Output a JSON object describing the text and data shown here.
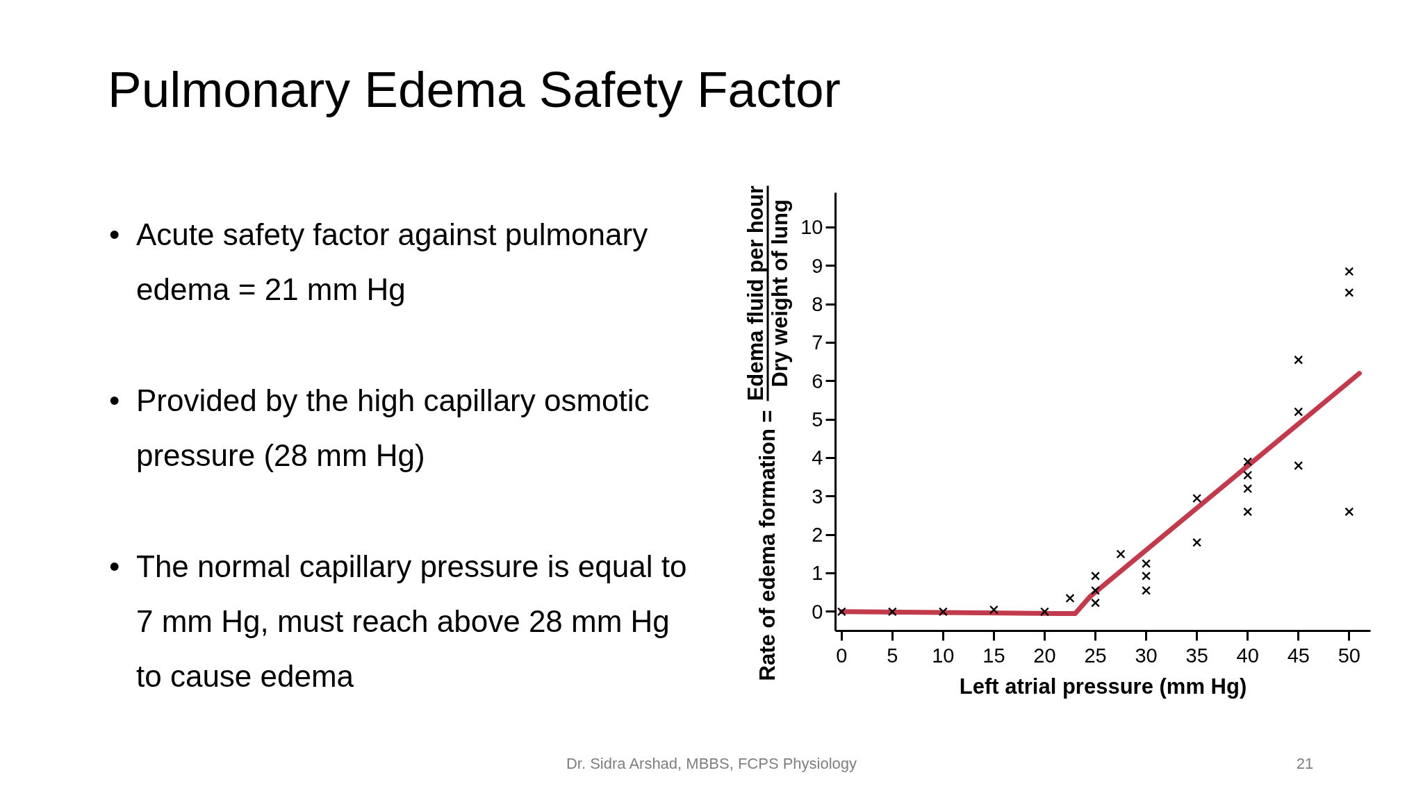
{
  "chart_data": {
    "type": "scatter",
    "title": "Pulmonary Edema Safety Factor",
    "xlabel": "Left atrial pressure (mm Hg)",
    "ylabel": "Rate of edema formation = Edema fluid per hour\nDry weight of lung",
    "xlim": [
      -0.6,
      52.1
    ],
    "ylim": [
      -0.5,
      10.9
    ],
    "xticks": [
      0,
      5,
      10,
      15,
      20,
      25,
      30,
      35,
      40,
      45,
      50
    ],
    "yticks": [
      0,
      1,
      2,
      3,
      4,
      5,
      6,
      7,
      8,
      9,
      10
    ],
    "grid": false,
    "line_style": "solid",
    "series": [
      {
        "marker": "cross",
        "color": "#000000",
        "x": [
          0,
          5,
          10,
          15,
          20,
          22.5,
          25,
          25,
          25,
          27.5,
          30,
          30,
          30,
          35,
          35,
          40,
          40,
          40,
          40,
          45,
          45,
          45,
          50,
          50,
          50
        ],
        "values": [
          0,
          0,
          0,
          0.05,
          0,
          0.35,
          0.23,
          0.55,
          0.93,
          1.5,
          0.55,
          0.93,
          1.25,
          1.8,
          2.95,
          2.6,
          3.2,
          3.55,
          3.9,
          3.8,
          5.2,
          6.55,
          2.6,
          8.3,
          8.85
        ]
      },
      {
        "type": "line",
        "color": "#c13b4c",
        "x": [
          0,
          23,
          24.5,
          51
        ],
        "values": [
          0,
          -0.05,
          0.4,
          6.2
        ]
      }
    ],
    "annotations": [
      "• Acute safety factor against pulmonary edema = 21 mm Hg",
      "• Provided by the high capillary osmotic pressure (28 mm Hg)",
      "• The normal capillary pressure is equal to 7 mm Hg, must reach above 28 mm Hg to cause edema",
      "Dr. Sidra Arshad, MBBS, FCPS Physiology",
      "21"
    ]
  }
}
